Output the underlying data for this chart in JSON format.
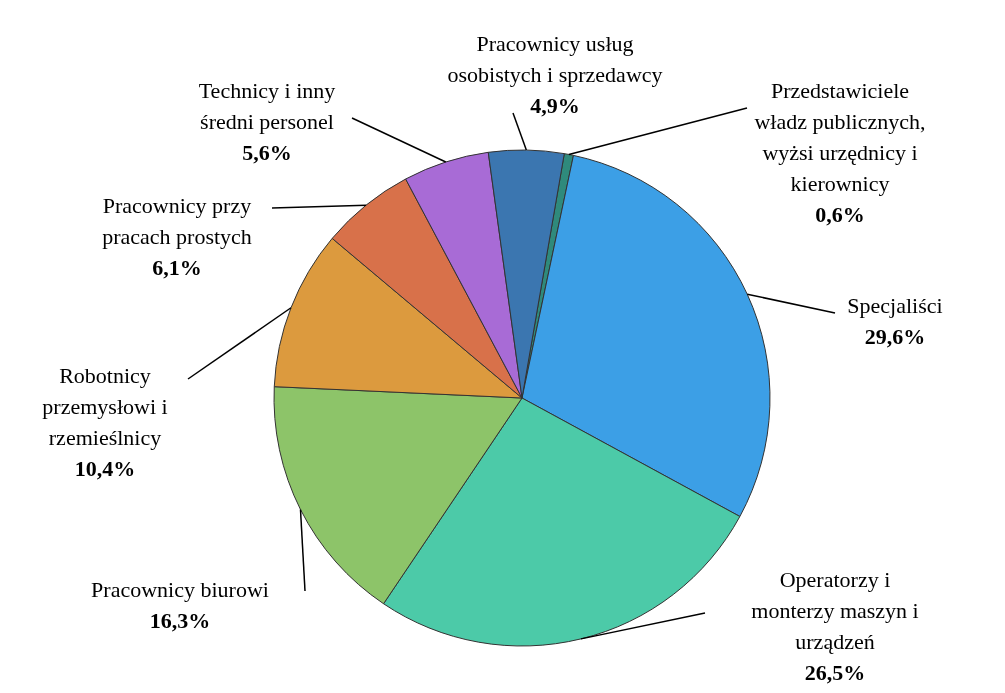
{
  "chart_data": {
    "type": "pie",
    "categories": [
      "Przedstawiciele władz publicznych, wyżsi urzędnicy i kierownicy",
      "Specjaliści",
      "Operatorzy i monterzy maszyn i urządzeń",
      "Pracownicy biurowi",
      "Robotnicy przemysłowi i rzemieślnicy",
      "Pracownicy przy pracach prostych",
      "Technicy i inny średni personel",
      "Pracownicy usług osobistych i sprzedawcy"
    ],
    "values": [
      0.6,
      29.6,
      26.5,
      16.3,
      10.4,
      6.1,
      5.6,
      4.9
    ],
    "colors": [
      "#2f8a7c",
      "#3c9fe6",
      "#4ccaa8",
      "#8dc469",
      "#dc9a3e",
      "#d8714a",
      "#a86bd6",
      "#3b76b0"
    ],
    "value_labels": [
      "0,6%",
      "29,6%",
      "26,5%",
      "16,3%",
      "10,4%",
      "6,1%",
      "5,6%",
      "4,9%"
    ]
  }
}
